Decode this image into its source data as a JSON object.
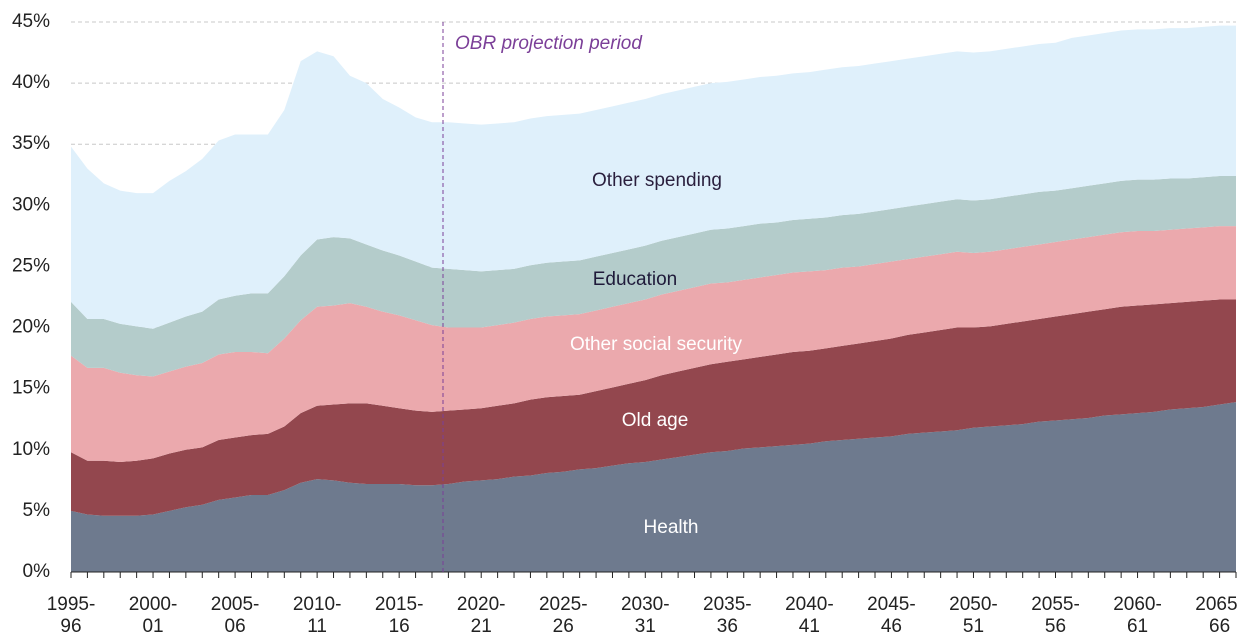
{
  "chart_data": {
    "type": "stacked_area",
    "annotation": "OBR projection period",
    "categories": [
      "1995-96",
      null,
      null,
      null,
      null,
      "2000-01",
      null,
      null,
      null,
      null,
      "2005-06",
      null,
      null,
      null,
      null,
      "2010-11",
      null,
      null,
      null,
      null,
      "2015-16",
      null,
      null,
      null,
      null,
      "2020-21",
      null,
      null,
      null,
      null,
      "2025-26",
      null,
      null,
      null,
      null,
      "2030-31",
      null,
      null,
      null,
      null,
      "2035-36",
      null,
      null,
      null,
      null,
      "2040-41",
      null,
      null,
      null,
      null,
      "2045-46",
      null,
      null,
      null,
      null,
      "2050-51",
      null,
      null,
      null,
      null,
      "2055-56",
      null,
      null,
      null,
      null,
      "2060-61",
      null,
      null,
      null,
      null,
      "2065-66",
      null
    ],
    "series": [
      {
        "name": "Health",
        "color": "#6e7a8e",
        "label_color": "#ffffff",
        "values": [
          5.0,
          4.7,
          4.6,
          4.6,
          4.6,
          4.7,
          5.0,
          5.3,
          5.5,
          5.9,
          6.1,
          6.3,
          6.3,
          6.7,
          7.3,
          7.6,
          7.5,
          7.3,
          7.2,
          7.2,
          7.2,
          7.1,
          7.1,
          7.2,
          7.4,
          7.5,
          7.6,
          7.8,
          7.9,
          8.1,
          8.2,
          8.4,
          8.5,
          8.7,
          8.9,
          9.0,
          9.2,
          9.4,
          9.6,
          9.8,
          9.9,
          10.1,
          10.2,
          10.3,
          10.4,
          10.5,
          10.7,
          10.8,
          10.9,
          11.0,
          11.1,
          11.3,
          11.4,
          11.5,
          11.6,
          11.8,
          11.9,
          12.0,
          12.1,
          12.3,
          12.4,
          12.5,
          12.6,
          12.8,
          12.9,
          13.0,
          13.1,
          13.3,
          13.4,
          13.5,
          13.7,
          13.9
        ]
      },
      {
        "name": "Old age",
        "color": "#93474e",
        "label_color": "#ffffff",
        "values": [
          4.8,
          4.4,
          4.5,
          4.4,
          4.5,
          4.6,
          4.7,
          4.7,
          4.7,
          4.9,
          4.9,
          4.9,
          5.0,
          5.2,
          5.7,
          6.0,
          6.2,
          6.5,
          6.6,
          6.4,
          6.2,
          6.1,
          6.0,
          6.0,
          5.9,
          5.9,
          6.0,
          6.0,
          6.2,
          6.2,
          6.2,
          6.1,
          6.3,
          6.4,
          6.5,
          6.7,
          6.9,
          7.0,
          7.1,
          7.2,
          7.3,
          7.3,
          7.4,
          7.5,
          7.6,
          7.6,
          7.6,
          7.7,
          7.8,
          7.9,
          8.0,
          8.1,
          8.2,
          8.3,
          8.4,
          8.2,
          8.2,
          8.3,
          8.4,
          8.4,
          8.5,
          8.6,
          8.7,
          8.7,
          8.8,
          8.8,
          8.8,
          8.7,
          8.7,
          8.7,
          8.6,
          8.4
        ]
      },
      {
        "name": "Other social security",
        "color": "#eba9ad",
        "label_color": "#ffffff",
        "values": [
          7.9,
          7.6,
          7.6,
          7.3,
          7.0,
          6.7,
          6.7,
          6.8,
          6.9,
          7.0,
          7.0,
          6.8,
          6.6,
          7.2,
          7.6,
          8.1,
          8.1,
          8.2,
          7.9,
          7.7,
          7.6,
          7.4,
          7.1,
          6.8,
          6.7,
          6.6,
          6.6,
          6.6,
          6.6,
          6.6,
          6.6,
          6.6,
          6.6,
          6.6,
          6.6,
          6.6,
          6.6,
          6.6,
          6.6,
          6.6,
          6.5,
          6.5,
          6.5,
          6.5,
          6.5,
          6.5,
          6.4,
          6.4,
          6.3,
          6.3,
          6.3,
          6.2,
          6.2,
          6.2,
          6.2,
          6.1,
          6.1,
          6.1,
          6.1,
          6.1,
          6.1,
          6.1,
          6.1,
          6.1,
          6.1,
          6.1,
          6.0,
          6.0,
          6.0,
          6.0,
          6.0,
          6.0
        ]
      },
      {
        "name": "Education",
        "color": "#b4cccb",
        "label_color": "#1f1a3a",
        "values": [
          4.4,
          4.0,
          4.0,
          4.0,
          4.0,
          3.9,
          4.0,
          4.1,
          4.2,
          4.5,
          4.6,
          4.8,
          4.9,
          5.1,
          5.3,
          5.5,
          5.6,
          5.3,
          5.1,
          5.0,
          4.9,
          4.8,
          4.7,
          4.8,
          4.7,
          4.6,
          4.5,
          4.4,
          4.4,
          4.4,
          4.4,
          4.4,
          4.4,
          4.4,
          4.4,
          4.4,
          4.4,
          4.4,
          4.4,
          4.4,
          4.4,
          4.4,
          4.4,
          4.3,
          4.3,
          4.3,
          4.3,
          4.3,
          4.3,
          4.3,
          4.3,
          4.3,
          4.3,
          4.3,
          4.3,
          4.3,
          4.3,
          4.3,
          4.3,
          4.3,
          4.2,
          4.2,
          4.2,
          4.2,
          4.2,
          4.2,
          4.2,
          4.2,
          4.1,
          4.1,
          4.1,
          4.1
        ]
      },
      {
        "name": "Other spending",
        "color": "#dff0fb",
        "label_color": "#2a1f3d",
        "values": [
          12.7,
          12.3,
          11.1,
          10.9,
          10.9,
          11.1,
          11.6,
          11.9,
          12.5,
          13.0,
          13.2,
          13.0,
          13.0,
          13.6,
          15.9,
          15.4,
          14.8,
          13.3,
          13.2,
          12.4,
          12.1,
          11.8,
          11.9,
          12.0,
          12.0,
          12.0,
          12.0,
          12.0,
          12.0,
          12.0,
          12.0,
          12.0,
          12.0,
          12.0,
          12.0,
          12.0,
          12.0,
          12.0,
          12.0,
          12.0,
          12.0,
          12.0,
          12.0,
          12.0,
          12.0,
          12.0,
          12.1,
          12.1,
          12.1,
          12.1,
          12.1,
          12.1,
          12.1,
          12.1,
          12.1,
          12.1,
          12.1,
          12.1,
          12.1,
          12.1,
          12.1,
          12.3,
          12.3,
          12.3,
          12.3,
          12.3,
          12.3,
          12.3,
          12.3,
          12.3,
          12.3,
          12.3
        ]
      }
    ],
    "ylim": [
      0,
      45
    ],
    "yticks": [
      {
        "value": 0,
        "label": "0%"
      },
      {
        "value": 5,
        "label": "5%"
      },
      {
        "value": 10,
        "label": "10%"
      },
      {
        "value": 15,
        "label": "15%"
      },
      {
        "value": 20,
        "label": "20%"
      },
      {
        "value": 25,
        "label": "25%"
      },
      {
        "value": 30,
        "label": "30%"
      },
      {
        "value": 35,
        "label": "35%"
      },
      {
        "value": 40,
        "label": "40%"
      },
      {
        "value": 45,
        "label": "45%"
      }
    ],
    "grid": true
  }
}
